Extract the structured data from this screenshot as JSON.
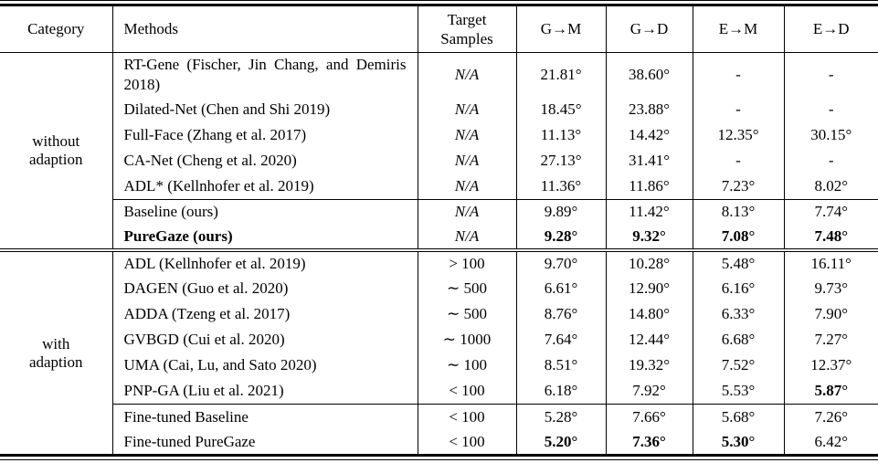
{
  "page": {
    "background": "#ffffff",
    "text_color": "#000000",
    "rule_color": "#000000"
  },
  "table": {
    "headers": [
      {
        "label": "Category"
      },
      {
        "label": "Methods"
      },
      {
        "label": "Target Samples"
      },
      {
        "label": "G→M"
      },
      {
        "label": "G→D"
      },
      {
        "label": "E→M"
      },
      {
        "label": "E→D"
      }
    ],
    "sections": [
      {
        "category_lines": [
          "without",
          "adaption"
        ],
        "rows": [
          {
            "method": "RT-Gene (Fischer, Jin Chang, and Demiris 2018)",
            "method_bold": false,
            "samples": "N/A",
            "samples_italic": true,
            "rule_above": false,
            "values": [
              "21.81°",
              "38.60°",
              "-",
              "-"
            ],
            "bold": [
              false,
              false,
              false,
              false
            ]
          },
          {
            "method": "Dilated-Net (Chen and Shi 2019)",
            "method_bold": false,
            "samples": "N/A",
            "samples_italic": true,
            "rule_above": false,
            "values": [
              "18.45°",
              "23.88°",
              "-",
              "-"
            ],
            "bold": [
              false,
              false,
              false,
              false
            ]
          },
          {
            "method": "Full-Face (Zhang et al. 2017)",
            "method_bold": false,
            "samples": "N/A",
            "samples_italic": true,
            "rule_above": false,
            "values": [
              "11.13°",
              "14.42°",
              "12.35°",
              "30.15°"
            ],
            "bold": [
              false,
              false,
              false,
              false
            ]
          },
          {
            "method": "CA-Net (Cheng et al. 2020)",
            "method_bold": false,
            "samples": "N/A",
            "samples_italic": true,
            "rule_above": false,
            "values": [
              "27.13°",
              "31.41°",
              "-",
              "-"
            ],
            "bold": [
              false,
              false,
              false,
              false
            ]
          },
          {
            "method": "ADL* (Kellnhofer et al. 2019)",
            "method_bold": false,
            "samples": "N/A",
            "samples_italic": true,
            "rule_above": false,
            "values": [
              "11.36°",
              "11.86°",
              "7.23°",
              "8.02°"
            ],
            "bold": [
              false,
              false,
              false,
              false
            ]
          },
          {
            "method": "Baseline (ours)",
            "method_bold": false,
            "samples": "N/A",
            "samples_italic": true,
            "rule_above": true,
            "values": [
              "9.89°",
              "11.42°",
              "8.13°",
              "7.74°"
            ],
            "bold": [
              false,
              false,
              false,
              false
            ]
          },
          {
            "method": "PureGaze (ours)",
            "method_bold": true,
            "samples": "N/A",
            "samples_italic": true,
            "rule_above": false,
            "values": [
              "9.28°",
              "9.32°",
              "7.08°",
              "7.48°"
            ],
            "bold": [
              true,
              true,
              true,
              true
            ]
          }
        ]
      },
      {
        "category_lines": [
          "with",
          "adaption"
        ],
        "rows": [
          {
            "method": "ADL (Kellnhofer et al. 2019)",
            "method_bold": false,
            "samples": "> 100",
            "samples_italic": false,
            "rule_above": false,
            "values": [
              "9.70°",
              "10.28°",
              "5.48°",
              "16.11°"
            ],
            "bold": [
              false,
              false,
              false,
              false
            ]
          },
          {
            "method": "DAGEN (Guo et al. 2020)",
            "method_bold": false,
            "samples": "∼ 500",
            "samples_italic": false,
            "rule_above": false,
            "values": [
              "6.61°",
              "12.90°",
              "6.16°",
              "9.73°"
            ],
            "bold": [
              false,
              false,
              false,
              false
            ]
          },
          {
            "method": "ADDA (Tzeng et al. 2017)",
            "method_bold": false,
            "samples": "∼ 500",
            "samples_italic": false,
            "rule_above": false,
            "values": [
              "8.76°",
              "14.80°",
              "6.33°",
              "7.90°"
            ],
            "bold": [
              false,
              false,
              false,
              false
            ]
          },
          {
            "method": "GVBGD (Cui et al. 2020)",
            "method_bold": false,
            "samples": "∼ 1000",
            "samples_italic": false,
            "rule_above": false,
            "values": [
              "7.64°",
              "12.44°",
              "6.68°",
              "7.27°"
            ],
            "bold": [
              false,
              false,
              false,
              false
            ]
          },
          {
            "method": "UMA (Cai, Lu, and Sato 2020)",
            "method_bold": false,
            "samples": "∼ 100",
            "samples_italic": false,
            "rule_above": false,
            "values": [
              "8.51°",
              "19.32°",
              "7.52°",
              "12.37°"
            ],
            "bold": [
              false,
              false,
              false,
              false
            ]
          },
          {
            "method": "PNP-GA (Liu et al. 2021)",
            "method_bold": false,
            "samples": "< 100",
            "samples_italic": false,
            "rule_above": false,
            "values": [
              "6.18°",
              "7.92°",
              "5.53°",
              "5.87°"
            ],
            "bold": [
              false,
              false,
              false,
              true
            ]
          },
          {
            "method": "Fine-tuned Baseline",
            "method_bold": false,
            "samples": "< 100",
            "samples_italic": false,
            "rule_above": true,
            "values": [
              "5.28°",
              "7.66°",
              "5.68°",
              "7.26°"
            ],
            "bold": [
              false,
              false,
              false,
              false
            ]
          },
          {
            "method": "Fine-tuned PureGaze",
            "method_bold": false,
            "samples": "< 100",
            "samples_italic": false,
            "rule_above": false,
            "values": [
              "5.20°",
              "7.36°",
              "5.30°",
              "6.42°"
            ],
            "bold": [
              true,
              true,
              true,
              false
            ]
          }
        ]
      }
    ]
  }
}
